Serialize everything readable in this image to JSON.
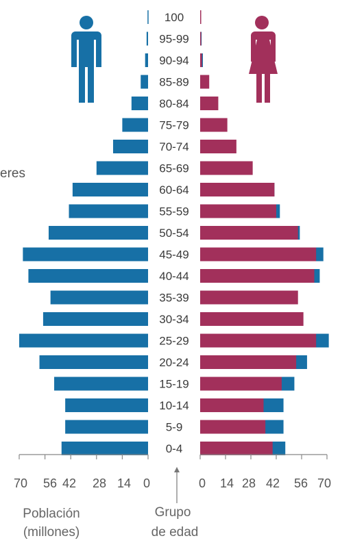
{
  "colors": {
    "male": "#1770a6",
    "female": "#a2305b",
    "axis": "#888888",
    "text": "#555555"
  },
  "icons": {
    "male": "man-icon",
    "female": "woman-icon"
  },
  "chart_data": {
    "type": "bar",
    "orientation": "horizontal",
    "layout": "population-pyramid",
    "categories": [
      "100",
      "95-99",
      "90-94",
      "85-89",
      "80-84",
      "75-79",
      "70-74",
      "65-69",
      "60-64",
      "55-59",
      "50-54",
      "45-49",
      "40-44",
      "35-39",
      "30-34",
      "25-29",
      "20-24",
      "15-19",
      "10-14",
      "5-9",
      "0-4"
    ],
    "series": [
      {
        "side": "left",
        "color": "#1770a6",
        "values": [
          0.3,
          0.8,
          1.6,
          4,
          9,
          14,
          19,
          28,
          41,
          43,
          54,
          68,
          65,
          53,
          57,
          70,
          59,
          51,
          45,
          45,
          47
        ]
      },
      {
        "side": "right",
        "color": "#a2305b",
        "values": [
          0.2,
          0.5,
          1,
          5,
          10,
          15,
          20,
          29,
          41,
          42,
          54,
          64,
          63,
          54,
          57,
          64,
          53,
          45,
          35,
          36,
          40
        ]
      },
      {
        "side": "right",
        "color": "#1770a6",
        "values": [
          0.3,
          0.8,
          1.5,
          4.5,
          9,
          13.5,
          19,
          28,
          41,
          44,
          55,
          68,
          66,
          53,
          56,
          71,
          59,
          52,
          46,
          46,
          47
        ]
      }
    ],
    "xticks_left": [
      "70",
      "56",
      "42",
      "28",
      "14",
      "0"
    ],
    "xticks_right": [
      "0",
      "14",
      "28",
      "42",
      "56",
      "70"
    ],
    "xlim": [
      0,
      70
    ],
    "xlabel_line1": "Población",
    "xlabel_line2": "(millones)",
    "agelabel_line1": "Grupo",
    "agelabel_line2": "de edad",
    "side_label": "eres"
  }
}
